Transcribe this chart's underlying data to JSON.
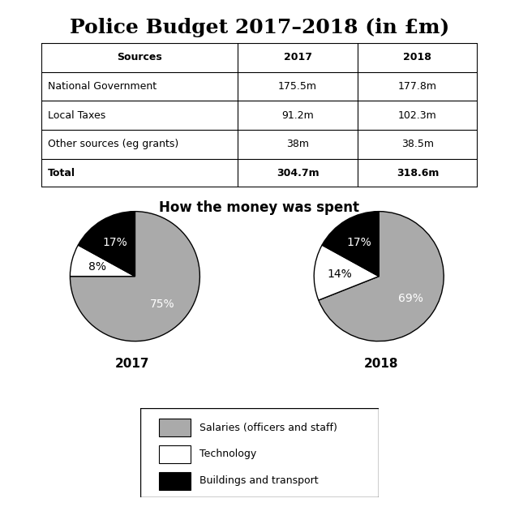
{
  "title": "Police Budget 2017–2018 (in £m)",
  "title_fontsize": 18,
  "table": {
    "col_headers": [
      "Sources",
      "2017",
      "2018"
    ],
    "rows": [
      [
        "National Government",
        "175.5m",
        "177.8m"
      ],
      [
        "Local Taxes",
        "91.2m",
        "102.3m"
      ],
      [
        "Other sources (eg grants)",
        "38m",
        "38.5m"
      ],
      [
        "Total",
        "304.7m",
        "318.6m"
      ]
    ]
  },
  "pie_title": "How the money was spent",
  "pie_title_fontsize": 12,
  "pie_2017": {
    "values": [
      75,
      8,
      17
    ],
    "colors": [
      "#aaaaaa",
      "#ffffff",
      "#000000"
    ],
    "labels": [
      "75%",
      "8%",
      "17%"
    ],
    "label_colors": [
      "white",
      "black",
      "white"
    ],
    "year_label": "2017"
  },
  "pie_2018": {
    "values": [
      69,
      14,
      17
    ],
    "colors": [
      "#aaaaaa",
      "#ffffff",
      "#000000"
    ],
    "labels": [
      "69%",
      "14%",
      "17%"
    ],
    "label_colors": [
      "white",
      "black",
      "white"
    ],
    "year_label": "2018"
  },
  "legend_items": [
    {
      "label": "Salaries (officers and staff)",
      "color": "#aaaaaa"
    },
    {
      "label": "Technology",
      "color": "#ffffff"
    },
    {
      "label": "Buildings and transport",
      "color": "#000000"
    }
  ],
  "background_color": "#ffffff"
}
